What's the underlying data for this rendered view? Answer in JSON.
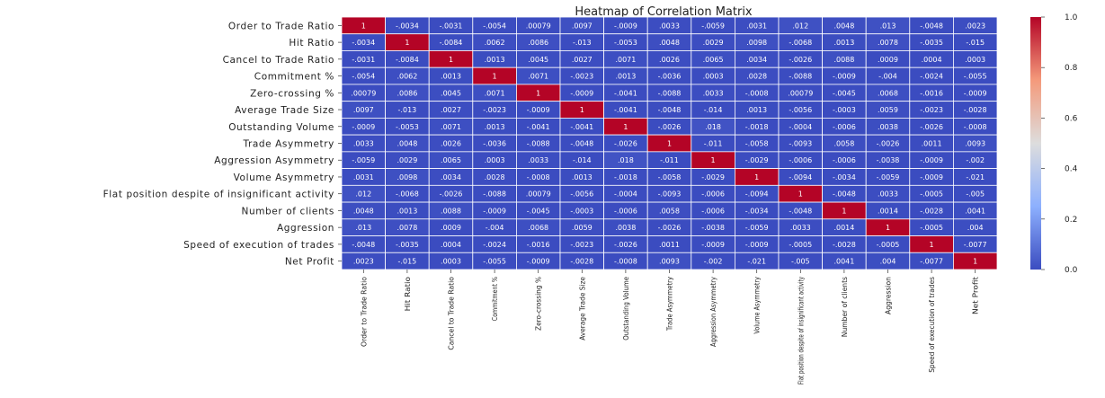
{
  "chart_data": {
    "type": "heatmap",
    "title": "Heatmap of Correlation Matrix",
    "variables": [
      "Order to Trade Ratio",
      "Hit Ratio",
      "Cancel to Trade Ratio",
      "Commitment %",
      "Zero-crossing %",
      "Average Trade Size",
      "Outstanding Volume",
      "Trade Asymmetry",
      "Aggression Asymmetry",
      "Volume Asymmetry",
      "Flat position despite of insignificant activity",
      "Number of clients",
      "Aggression",
      "Speed of execution of trades",
      "Net Profit"
    ],
    "matrix": [
      [
        1,
        -0.0034,
        -0.0031,
        -0.0054,
        0.00079,
        0.0097,
        -0.0009,
        0.0033,
        -0.0059,
        0.0031,
        0.012,
        0.0048,
        0.013,
        -0.0048,
        0.0023
      ],
      [
        -0.0034,
        1,
        -0.0084,
        0.0062,
        0.0086,
        -0.013,
        -0.0053,
        0.0048,
        0.0029,
        0.0098,
        -0.0068,
        0.0013,
        0.0078,
        -0.0035,
        -0.015
      ],
      [
        -0.0031,
        -0.0084,
        1,
        0.0013,
        0.0045,
        0.0027,
        0.0071,
        0.0026,
        0.0065,
        0.0034,
        -0.0026,
        0.0088,
        0.0009,
        0.0004,
        0.0003
      ],
      [
        -0.0054,
        0.0062,
        0.0013,
        1,
        0.0071,
        -0.0023,
        0.0013,
        -0.0036,
        0.0003,
        0.0028,
        -0.0088,
        -0.0009,
        -0.004,
        -0.0024,
        -0.0055
      ],
      [
        0.00079,
        0.0086,
        0.0045,
        0.0071,
        1,
        -0.0009,
        -0.0041,
        -0.0088,
        0.0033,
        -0.0008,
        0.00079,
        -0.0045,
        0.0068,
        -0.0016,
        -0.0009
      ],
      [
        0.0097,
        -0.013,
        0.0027,
        -0.0023,
        -0.0009,
        1,
        -0.0041,
        -0.0048,
        -0.014,
        0.0013,
        -0.0056,
        -0.0003,
        0.0059,
        -0.0023,
        -0.0028
      ],
      [
        -0.0009,
        -0.0053,
        0.0071,
        0.0013,
        -0.0041,
        -0.0041,
        1,
        -0.0026,
        0.018,
        -0.0018,
        -0.0004,
        -0.0006,
        0.0038,
        -0.0026,
        -0.0008
      ],
      [
        0.0033,
        0.0048,
        0.0026,
        -0.0036,
        -0.0088,
        -0.0048,
        -0.0026,
        1,
        -0.011,
        -0.0058,
        -0.0093,
        0.0058,
        -0.0026,
        0.0011,
        0.0093
      ],
      [
        -0.0059,
        0.0029,
        0.0065,
        0.0003,
        0.0033,
        -0.014,
        0.018,
        -0.011,
        1,
        -0.0029,
        -0.0006,
        -0.0006,
        -0.0038,
        -0.0009,
        -0.002
      ],
      [
        0.0031,
        0.0098,
        0.0034,
        0.0028,
        -0.0008,
        0.0013,
        -0.0018,
        -0.0058,
        -0.0029,
        1,
        -0.0094,
        -0.0034,
        -0.0059,
        -0.0009,
        -0.021
      ],
      [
        0.012,
        -0.0068,
        -0.0026,
        -0.0088,
        0.00079,
        -0.0056,
        -0.0004,
        -0.0093,
        -0.0006,
        -0.0094,
        1,
        -0.0048,
        0.0033,
        -0.0005,
        -0.005
      ],
      [
        0.0048,
        0.0013,
        0.0088,
        -0.0009,
        -0.0045,
        -0.0003,
        -0.0006,
        0.0058,
        -0.0006,
        -0.0034,
        -0.0048,
        1,
        0.0014,
        -0.0028,
        0.0041
      ],
      [
        0.013,
        0.0078,
        0.0009,
        -0.004,
        0.0068,
        0.0059,
        0.0038,
        -0.0026,
        -0.0038,
        -0.0059,
        0.0033,
        0.0014,
        1,
        -0.0005,
        0.004
      ],
      [
        -0.0048,
        -0.0035,
        0.0004,
        -0.0024,
        -0.0016,
        -0.0023,
        -0.0026,
        0.0011,
        -0.0009,
        -0.0009,
        -0.0005,
        -0.0028,
        -0.0005,
        1,
        -0.0077
      ],
      [
        0.0023,
        -0.015,
        0.0003,
        -0.0055,
        -0.0009,
        -0.0028,
        -0.0008,
        0.0093,
        -0.002,
        -0.021,
        -0.005,
        0.0041,
        0.004,
        -0.0077,
        1
      ]
    ],
    "colormap": {
      "low": "#3b4cc0",
      "mid": "#dddddd",
      "high": "#b40426"
    },
    "colorbar": {
      "range": [
        0,
        1
      ],
      "ticks": [
        "0.0",
        "0.2",
        "0.4",
        "0.6",
        "0.8",
        "1.0"
      ]
    },
    "grid": true
  }
}
